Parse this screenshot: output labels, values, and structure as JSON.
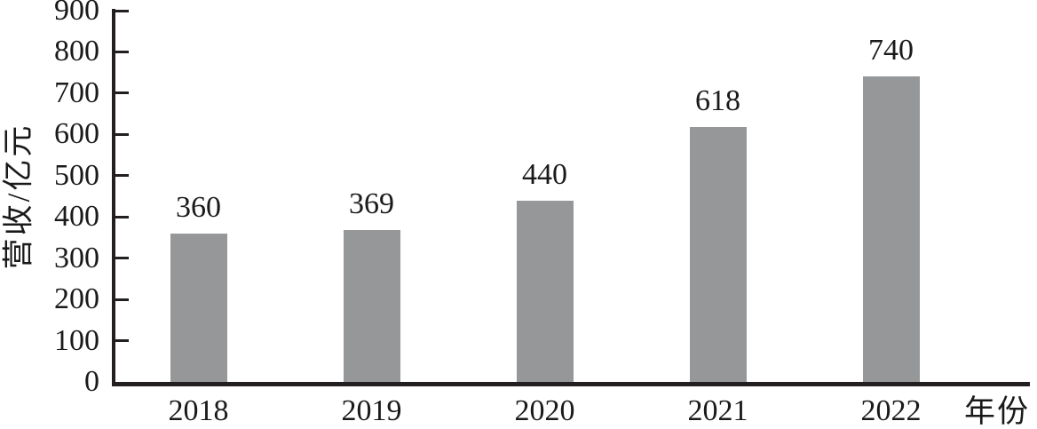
{
  "chart_data": {
    "type": "bar",
    "title": "",
    "categories": [
      "2018",
      "2019",
      "2020",
      "2021",
      "2022"
    ],
    "values": [
      360,
      369,
      440,
      618,
      740
    ],
    "series": [
      {
        "name": "营收",
        "values": [
          360,
          369,
          440,
          618,
          740
        ]
      }
    ],
    "xlabel": "年份",
    "ylabel": "营收/亿元",
    "ylim": [
      0,
      900
    ],
    "yticks": [
      0,
      100,
      200,
      300,
      400,
      500,
      600,
      700,
      800,
      900
    ],
    "ytick_interval": 100,
    "grid": false,
    "legend": null,
    "data_labels_shown": true,
    "colors": {
      "bar_fill": "#959799",
      "axis_line": "#231f20",
      "text": "#1a1a1a"
    }
  }
}
